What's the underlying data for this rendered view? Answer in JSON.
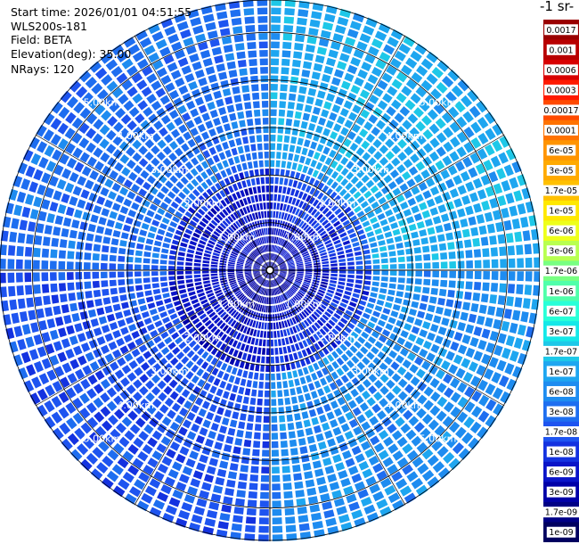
{
  "header": {
    "start_time": "Start time: 2026/01/01 04:51:55",
    "instrument": "WLS200s-181",
    "field": "Field: BETA",
    "elevation": "Elevation(deg): 35.00",
    "nrays": "NRays: 120"
  },
  "colorbar": {
    "unit_label": "-1 sr-",
    "ticks": [
      "0.0017",
      "0.001",
      "0.0006",
      "0.0003",
      "0.00017",
      "0.0001",
      "6e-05",
      "3e-05",
      "1.7e-05",
      "1e-05",
      "6e-06",
      "3e-06",
      "1.7e-06",
      "1e-06",
      "6e-07",
      "3e-07",
      "1.7e-07",
      "1e-07",
      "6e-08",
      "3e-08",
      "1.7e-08",
      "1e-08",
      "6e-09",
      "3e-09",
      "1.7e-09",
      "1e-09"
    ],
    "colors": [
      "#9a0000",
      "#b80000",
      "#d80000",
      "#ff1a00",
      "#ff4a00",
      "#ff7200",
      "#ff9400",
      "#ffaa00",
      "#ffc000",
      "#ffe800",
      "#eeff1a",
      "#b8ff50",
      "#78ff82",
      "#50ffaa",
      "#28ffd8",
      "#14e8e8",
      "#1ec8e8",
      "#1ea6f0",
      "#1e8cf0",
      "#1e6ef0",
      "#1e54f0",
      "#1432e0",
      "#0a14c8",
      "#0000a8",
      "#000085",
      "#000060"
    ]
  },
  "chart_data": {
    "type": "heatmap",
    "projection": "polar (PPI scan)",
    "field": "BETA",
    "nrays": 120,
    "range_rings": [
      "1.00km",
      "2.00km",
      "3.00km",
      "4.00km",
      "5.00km"
    ],
    "range_rings_km": [
      1,
      2,
      3,
      4,
      5
    ],
    "max_range_km": 5.7,
    "sector_values_by_quadrant": {
      "north_west": "3e-08",
      "north_east": "1e-07",
      "south_east": "6e-08",
      "south_west": "1.7e-08",
      "near_center": "6e-09"
    }
  }
}
